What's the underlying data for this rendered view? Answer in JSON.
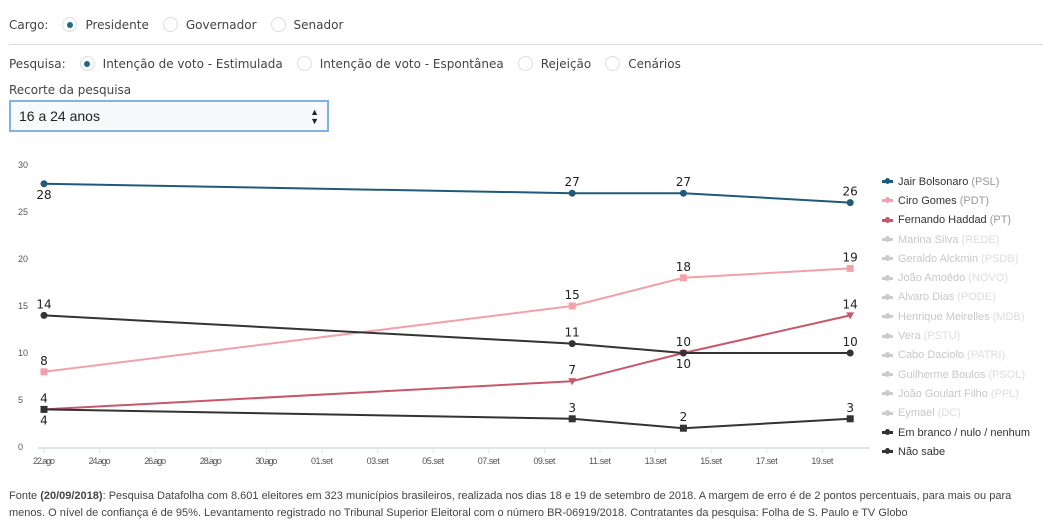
{
  "cargo": {
    "label": "Cargo:",
    "options": [
      "Presidente",
      "Governador",
      "Senador"
    ],
    "selected": 0
  },
  "pesquisa": {
    "label": "Pesquisa:",
    "options": [
      "Intenção de voto - Estimulada",
      "Intenção de voto - Espontânea",
      "Rejeição",
      "Cenários"
    ],
    "selected": 0
  },
  "recorte": {
    "label": "Recorte da pesquisa",
    "value": "16 a 24 anos"
  },
  "chart_data": {
    "type": "line",
    "ylim": [
      0,
      30
    ],
    "yticks": [
      0,
      5,
      10,
      15,
      20,
      25,
      30
    ],
    "xticks": [
      "22.ago",
      "24.ago",
      "26.ago",
      "28.ago",
      "30.ago",
      "01.set",
      "03.set",
      "05.set",
      "07.set",
      "09.set",
      "11.set",
      "13.set",
      "15.set",
      "17.set",
      "19.set"
    ],
    "x": [
      "2018-08-22",
      "2018-09-10",
      "2018-09-14",
      "2018-09-20"
    ],
    "grid": false,
    "legend_placement": "right",
    "series": [
      {
        "name": "Jair Bolsonaro",
        "party": "(PSL)",
        "color": "#1f5a7a",
        "marker": "circle",
        "values": [
          28,
          27,
          27,
          26
        ],
        "active": true
      },
      {
        "name": "Ciro Gomes",
        "party": "(PDT)",
        "color": "#f2a1aa",
        "marker": "square",
        "values": [
          8,
          15,
          18,
          19
        ],
        "active": true
      },
      {
        "name": "Fernando Haddad",
        "party": "(PT)",
        "color": "#c9576c",
        "marker": "triangle-down",
        "values": [
          4,
          7,
          10,
          14
        ],
        "active": true
      },
      {
        "name": "Marina Silva",
        "party": "(REDE)",
        "color": "#cccccc",
        "active": false
      },
      {
        "name": "Geraldo Alckmin",
        "party": "(PSDB)",
        "color": "#cccccc",
        "active": false
      },
      {
        "name": "João Amoêdo",
        "party": "(NOVO)",
        "color": "#cccccc",
        "active": false
      },
      {
        "name": "Alvaro Dias",
        "party": "(PODE)",
        "color": "#cccccc",
        "active": false
      },
      {
        "name": "Henrique Meirelles",
        "party": "(MDB)",
        "color": "#cccccc",
        "active": false
      },
      {
        "name": "Vera",
        "party": "(PSTU)",
        "color": "#cccccc",
        "active": false
      },
      {
        "name": "Cabo Daciolo",
        "party": "(PATRI)",
        "color": "#cccccc",
        "active": false
      },
      {
        "name": "Guilherme Boulos",
        "party": "(PSOL)",
        "color": "#cccccc",
        "active": false
      },
      {
        "name": "João Goulart Filho",
        "party": "(PPL)",
        "color": "#cccccc",
        "active": false
      },
      {
        "name": "Eymael",
        "party": "(DC)",
        "color": "#cccccc",
        "active": false
      },
      {
        "name": "Em branco / nulo / nenhum",
        "party": "",
        "color": "#333333",
        "marker": "circle",
        "values": [
          14,
          11,
          10,
          10
        ],
        "active": true
      },
      {
        "name": "Não sabe",
        "party": "",
        "color": "#333333",
        "marker": "square",
        "values": [
          4,
          3,
          2,
          3
        ],
        "active": true
      }
    ]
  },
  "footer": {
    "prefix": "Fonte ",
    "date": "(20/09/2018)",
    "text": ": Pesquisa Datafolha com 8.601 eleitores em 323 municípios brasileiros, realizada nos dias 18 e 19 de setembro de 2018. A margem de erro é de 2 pontos percentuais, para mais ou para menos. O nível de confiança é de 95%. Levantamento registrado no Tribunal Superior Eleitoral com o número BR-06919/2018. Contratantes da pesquisa: Folha de S. Paulo e TV Globo"
  }
}
